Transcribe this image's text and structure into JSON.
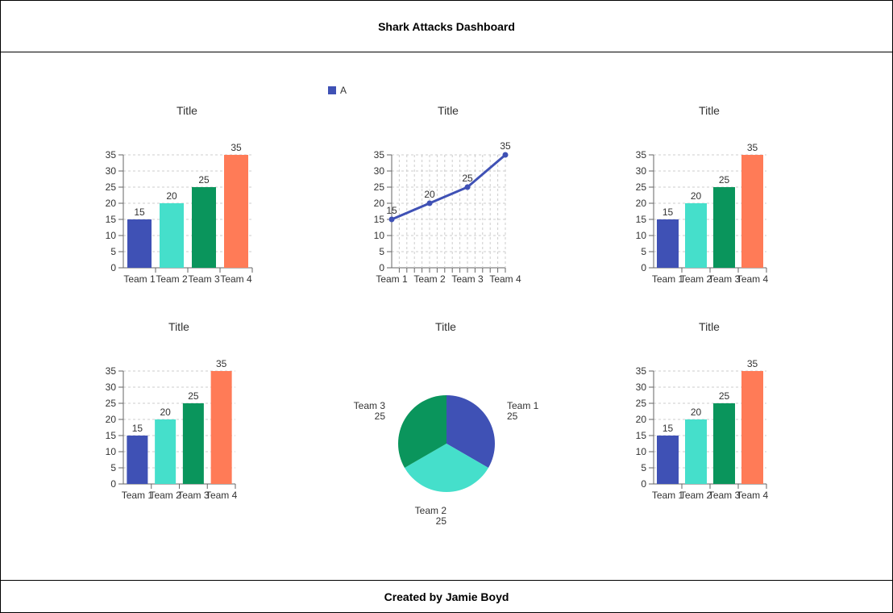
{
  "header": {
    "title": "Shark Attacks Dashboard"
  },
  "footer": {
    "text": "Created by Jamie Boyd"
  },
  "legend": {
    "label": "A",
    "color": "#3f51b5"
  },
  "colors": [
    "#3f51b5",
    "#45dfcb",
    "#0a955c",
    "#ff7b57"
  ],
  "chart_data": [
    {
      "type": "bar",
      "title": "Title",
      "categories": [
        "Team 1",
        "Team 2",
        "Team 3",
        "Team 4"
      ],
      "values": [
        15,
        20,
        25,
        35
      ],
      "ylim": [
        0,
        35
      ],
      "yticks": [
        0,
        5,
        10,
        15,
        20,
        25,
        30,
        35
      ],
      "grid": true
    },
    {
      "type": "line",
      "title": "Title",
      "categories": [
        "Team 1",
        "Team 2",
        "Team 3",
        "Team 4"
      ],
      "series": [
        {
          "name": "A",
          "values": [
            15,
            20,
            25,
            35
          ]
        }
      ],
      "ylim": [
        0,
        35
      ],
      "yticks": [
        0,
        5,
        10,
        15,
        20,
        25,
        30,
        35
      ],
      "grid": true,
      "legend": "top-left"
    },
    {
      "type": "bar",
      "title": "Title",
      "categories": [
        "Team 1",
        "Team 2",
        "Team 3",
        "Team 4"
      ],
      "values": [
        15,
        20,
        25,
        35
      ],
      "ylim": [
        0,
        35
      ],
      "yticks": [
        0,
        5,
        10,
        15,
        20,
        25,
        30,
        35
      ],
      "grid": true
    },
    {
      "type": "bar",
      "title": "Title",
      "categories": [
        "Team 1",
        "Team 2",
        "Team 3",
        "Team 4"
      ],
      "values": [
        15,
        20,
        25,
        35
      ],
      "ylim": [
        0,
        35
      ],
      "yticks": [
        0,
        5,
        10,
        15,
        20,
        25,
        30,
        35
      ],
      "grid": true
    },
    {
      "type": "pie",
      "title": "Title",
      "labels": [
        "Team 1",
        "Team 2",
        "Team 3"
      ],
      "values": [
        25,
        25,
        25
      ]
    },
    {
      "type": "bar",
      "title": "Title",
      "categories": [
        "Team 1",
        "Team 2",
        "Team 3",
        "Team 4"
      ],
      "values": [
        15,
        20,
        25,
        35
      ],
      "ylim": [
        0,
        35
      ],
      "yticks": [
        0,
        5,
        10,
        15,
        20,
        25,
        30,
        35
      ],
      "grid": true
    }
  ]
}
